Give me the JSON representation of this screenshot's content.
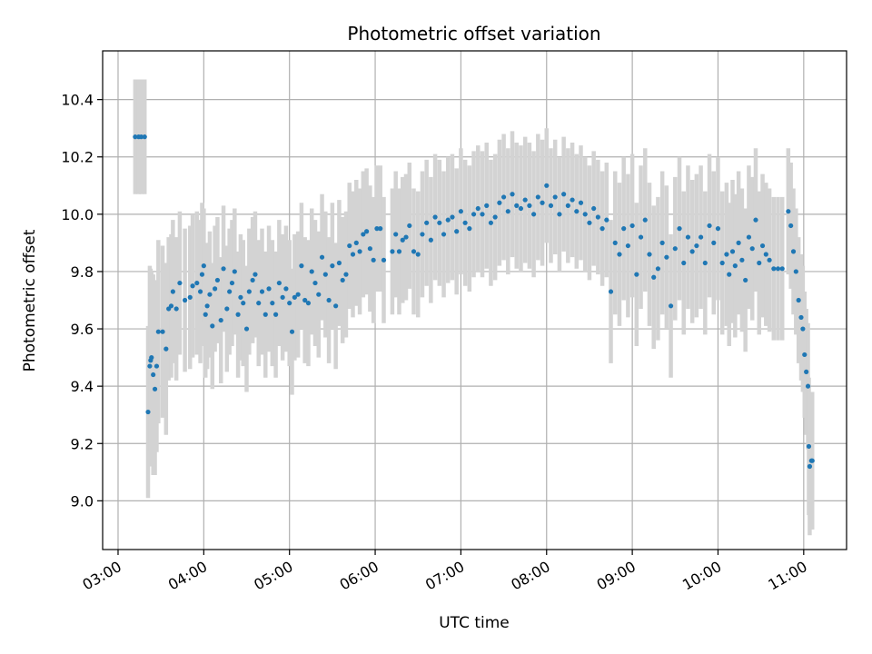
{
  "chart_data": {
    "type": "scatter",
    "title": "Photometric offset variation",
    "xlabel": "UTC time",
    "ylabel": "Photometric offset",
    "x_unit": "UTC hour",
    "xlim": [
      2.82,
      11.5
    ],
    "ylim": [
      8.83,
      10.57
    ],
    "grid": true,
    "colors": {
      "points": "#1f77b4",
      "errorbars": "#d3d3d3",
      "grid": "#b0b0b0"
    },
    "x_ticks": [
      {
        "value": 3,
        "label": "03:00"
      },
      {
        "value": 4,
        "label": "04:00"
      },
      {
        "value": 5,
        "label": "05:00"
      },
      {
        "value": 6,
        "label": "06:00"
      },
      {
        "value": 7,
        "label": "07:00"
      },
      {
        "value": 8,
        "label": "08:00"
      },
      {
        "value": 9,
        "label": "09:00"
      },
      {
        "value": 10,
        "label": "10:00"
      },
      {
        "value": 11,
        "label": "11:00"
      }
    ],
    "y_ticks": [
      {
        "value": 9.0,
        "label": "9.0"
      },
      {
        "value": 9.2,
        "label": "9.2"
      },
      {
        "value": 9.4,
        "label": "9.4"
      },
      {
        "value": 9.6,
        "label": "9.6"
      },
      {
        "value": 9.8,
        "label": "9.8"
      },
      {
        "value": 10.0,
        "label": "10.0"
      },
      {
        "value": 10.2,
        "label": "10.2"
      },
      {
        "value": 10.4,
        "label": "10.4"
      }
    ],
    "points": [
      [
        3.2,
        10.27,
        0.2
      ],
      [
        3.24,
        10.27,
        0.2
      ],
      [
        3.27,
        10.27,
        0.2
      ],
      [
        3.31,
        10.27,
        0.2
      ],
      [
        3.35,
        9.31,
        0.3
      ],
      [
        3.37,
        9.47,
        0.35
      ],
      [
        3.38,
        9.49,
        0.32
      ],
      [
        3.39,
        9.5,
        0.3
      ],
      [
        3.41,
        9.44,
        0.35
      ],
      [
        3.43,
        9.39,
        0.3
      ],
      [
        3.45,
        9.47,
        0.3
      ],
      [
        3.47,
        9.59,
        0.32
      ],
      [
        3.52,
        9.59,
        0.3
      ],
      [
        3.56,
        9.53,
        0.3
      ],
      [
        3.59,
        9.67,
        0.25
      ],
      [
        3.62,
        9.68,
        0.25
      ],
      [
        3.64,
        9.73,
        0.25
      ],
      [
        3.68,
        9.67,
        0.25
      ],
      [
        3.72,
        9.76,
        0.25
      ],
      [
        3.78,
        9.7,
        0.25
      ],
      [
        3.84,
        9.71,
        0.25
      ],
      [
        3.87,
        9.75,
        0.25
      ],
      [
        3.92,
        9.76,
        0.25
      ],
      [
        3.96,
        9.73,
        0.25
      ],
      [
        3.98,
        9.79,
        0.25
      ],
      [
        4.0,
        9.82,
        0.2
      ],
      [
        4.02,
        9.65,
        0.22
      ],
      [
        4.04,
        9.68,
        0.22
      ],
      [
        4.07,
        9.72,
        0.22
      ],
      [
        4.1,
        9.61,
        0.22
      ],
      [
        4.13,
        9.74,
        0.22
      ],
      [
        4.16,
        9.77,
        0.22
      ],
      [
        4.2,
        9.63,
        0.22
      ],
      [
        4.23,
        9.81,
        0.22
      ],
      [
        4.27,
        9.67,
        0.22
      ],
      [
        4.3,
        9.73,
        0.22
      ],
      [
        4.33,
        9.76,
        0.22
      ],
      [
        4.36,
        9.8,
        0.22
      ],
      [
        4.4,
        9.65,
        0.22
      ],
      [
        4.43,
        9.71,
        0.22
      ],
      [
        4.46,
        9.69,
        0.22
      ],
      [
        4.5,
        9.6,
        0.22
      ],
      [
        4.53,
        9.73,
        0.22
      ],
      [
        4.57,
        9.77,
        0.22
      ],
      [
        4.6,
        9.79,
        0.22
      ],
      [
        4.64,
        9.69,
        0.22
      ],
      [
        4.68,
        9.73,
        0.22
      ],
      [
        4.72,
        9.65,
        0.22
      ],
      [
        4.76,
        9.74,
        0.22
      ],
      [
        4.8,
        9.69,
        0.22
      ],
      [
        4.84,
        9.65,
        0.22
      ],
      [
        4.88,
        9.76,
        0.22
      ],
      [
        4.92,
        9.71,
        0.22
      ],
      [
        4.96,
        9.74,
        0.22
      ],
      [
        5.0,
        9.69,
        0.22
      ],
      [
        5.03,
        9.59,
        0.22
      ],
      [
        5.06,
        9.71,
        0.22
      ],
      [
        5.1,
        9.72,
        0.22
      ],
      [
        5.14,
        9.82,
        0.22
      ],
      [
        5.18,
        9.7,
        0.22
      ],
      [
        5.22,
        9.69,
        0.22
      ],
      [
        5.26,
        9.8,
        0.22
      ],
      [
        5.3,
        9.76,
        0.22
      ],
      [
        5.34,
        9.72,
        0.22
      ],
      [
        5.38,
        9.85,
        0.22
      ],
      [
        5.42,
        9.79,
        0.22
      ],
      [
        5.46,
        9.7,
        0.22
      ],
      [
        5.5,
        9.82,
        0.22
      ],
      [
        5.54,
        9.68,
        0.22
      ],
      [
        5.58,
        9.83,
        0.22
      ],
      [
        5.62,
        9.77,
        0.22
      ],
      [
        5.66,
        9.79,
        0.22
      ],
      [
        5.7,
        9.89,
        0.22
      ],
      [
        5.74,
        9.86,
        0.22
      ],
      [
        5.78,
        9.9,
        0.22
      ],
      [
        5.82,
        9.87,
        0.22
      ],
      [
        5.86,
        9.93,
        0.22
      ],
      [
        5.9,
        9.94,
        0.22
      ],
      [
        5.94,
        9.88,
        0.22
      ],
      [
        5.98,
        9.84,
        0.22
      ],
      [
        6.02,
        9.95,
        0.22
      ],
      [
        6.06,
        9.95,
        0.22
      ],
      [
        6.1,
        9.84,
        0.22
      ],
      [
        6.2,
        9.87,
        0.22
      ],
      [
        6.24,
        9.93,
        0.22
      ],
      [
        6.28,
        9.87,
        0.22
      ],
      [
        6.32,
        9.91,
        0.22
      ],
      [
        6.36,
        9.92,
        0.22
      ],
      [
        6.4,
        9.96,
        0.22
      ],
      [
        6.45,
        9.87,
        0.22
      ],
      [
        6.5,
        9.86,
        0.22
      ],
      [
        6.55,
        9.93,
        0.22
      ],
      [
        6.6,
        9.97,
        0.22
      ],
      [
        6.65,
        9.91,
        0.22
      ],
      [
        6.7,
        9.99,
        0.22
      ],
      [
        6.75,
        9.97,
        0.22
      ],
      [
        6.8,
        9.93,
        0.22
      ],
      [
        6.85,
        9.98,
        0.22
      ],
      [
        6.9,
        9.99,
        0.22
      ],
      [
        6.95,
        9.94,
        0.22
      ],
      [
        7.0,
        10.01,
        0.22
      ],
      [
        7.05,
        9.97,
        0.22
      ],
      [
        7.1,
        9.95,
        0.22
      ],
      [
        7.15,
        10.0,
        0.22
      ],
      [
        7.2,
        10.02,
        0.22
      ],
      [
        7.25,
        10.0,
        0.22
      ],
      [
        7.3,
        10.03,
        0.22
      ],
      [
        7.35,
        9.97,
        0.22
      ],
      [
        7.4,
        9.99,
        0.22
      ],
      [
        7.45,
        10.04,
        0.22
      ],
      [
        7.5,
        10.06,
        0.22
      ],
      [
        7.55,
        10.01,
        0.22
      ],
      [
        7.6,
        10.07,
        0.22
      ],
      [
        7.65,
        10.03,
        0.22
      ],
      [
        7.7,
        10.02,
        0.22
      ],
      [
        7.75,
        10.05,
        0.22
      ],
      [
        7.8,
        10.03,
        0.22
      ],
      [
        7.85,
        10.0,
        0.22
      ],
      [
        7.9,
        10.06,
        0.22
      ],
      [
        7.95,
        10.04,
        0.22
      ],
      [
        8.0,
        10.1,
        0.2
      ],
      [
        8.05,
        10.03,
        0.2
      ],
      [
        8.1,
        10.06,
        0.2
      ],
      [
        8.15,
        10.0,
        0.2
      ],
      [
        8.2,
        10.07,
        0.2
      ],
      [
        8.25,
        10.03,
        0.2
      ],
      [
        8.3,
        10.05,
        0.2
      ],
      [
        8.35,
        10.01,
        0.2
      ],
      [
        8.4,
        10.04,
        0.2
      ],
      [
        8.45,
        10.0,
        0.2
      ],
      [
        8.5,
        9.97,
        0.2
      ],
      [
        8.55,
        10.02,
        0.2
      ],
      [
        8.6,
        9.99,
        0.2
      ],
      [
        8.65,
        9.95,
        0.2
      ],
      [
        8.7,
        9.98,
        0.2
      ],
      [
        8.75,
        9.73,
        0.25
      ],
      [
        8.8,
        9.9,
        0.25
      ],
      [
        8.85,
        9.86,
        0.25
      ],
      [
        8.9,
        9.95,
        0.25
      ],
      [
        8.95,
        9.89,
        0.25
      ],
      [
        9.0,
        9.96,
        0.25
      ],
      [
        9.05,
        9.79,
        0.25
      ],
      [
        9.1,
        9.92,
        0.25
      ],
      [
        9.15,
        9.98,
        0.25
      ],
      [
        9.2,
        9.86,
        0.25
      ],
      [
        9.25,
        9.78,
        0.25
      ],
      [
        9.3,
        9.81,
        0.25
      ],
      [
        9.35,
        9.9,
        0.25
      ],
      [
        9.4,
        9.85,
        0.25
      ],
      [
        9.45,
        9.68,
        0.25
      ],
      [
        9.5,
        9.88,
        0.25
      ],
      [
        9.55,
        9.95,
        0.25
      ],
      [
        9.6,
        9.83,
        0.25
      ],
      [
        9.65,
        9.92,
        0.25
      ],
      [
        9.7,
        9.87,
        0.25
      ],
      [
        9.75,
        9.89,
        0.25
      ],
      [
        9.8,
        9.92,
        0.25
      ],
      [
        9.85,
        9.83,
        0.25
      ],
      [
        9.9,
        9.96,
        0.25
      ],
      [
        9.95,
        9.9,
        0.25
      ],
      [
        10.0,
        9.95,
        0.25
      ],
      [
        10.05,
        9.83,
        0.25
      ],
      [
        10.1,
        9.86,
        0.25
      ],
      [
        10.13,
        9.79,
        0.25
      ],
      [
        10.17,
        9.87,
        0.25
      ],
      [
        10.2,
        9.82,
        0.25
      ],
      [
        10.24,
        9.9,
        0.25
      ],
      [
        10.28,
        9.84,
        0.25
      ],
      [
        10.32,
        9.77,
        0.25
      ],
      [
        10.36,
        9.92,
        0.25
      ],
      [
        10.4,
        9.88,
        0.25
      ],
      [
        10.44,
        9.98,
        0.25
      ],
      [
        10.48,
        9.83,
        0.25
      ],
      [
        10.52,
        9.89,
        0.25
      ],
      [
        10.56,
        9.86,
        0.25
      ],
      [
        10.6,
        9.84,
        0.25
      ],
      [
        10.65,
        9.81,
        0.25
      ],
      [
        10.7,
        9.81,
        0.25
      ],
      [
        10.75,
        9.81,
        0.25
      ],
      [
        10.82,
        10.01,
        0.22
      ],
      [
        10.85,
        9.96,
        0.22
      ],
      [
        10.88,
        9.87,
        0.22
      ],
      [
        10.91,
        9.8,
        0.22
      ],
      [
        10.94,
        9.7,
        0.22
      ],
      [
        10.97,
        9.64,
        0.22
      ],
      [
        10.99,
        9.6,
        0.22
      ],
      [
        11.01,
        9.51,
        0.22
      ],
      [
        11.03,
        9.45,
        0.22
      ],
      [
        11.05,
        9.4,
        0.22
      ],
      [
        11.06,
        9.19,
        0.24
      ],
      [
        11.07,
        9.12,
        0.24
      ],
      [
        11.09,
        9.14,
        0.24
      ],
      [
        11.1,
        9.14,
        0.24
      ]
    ]
  }
}
